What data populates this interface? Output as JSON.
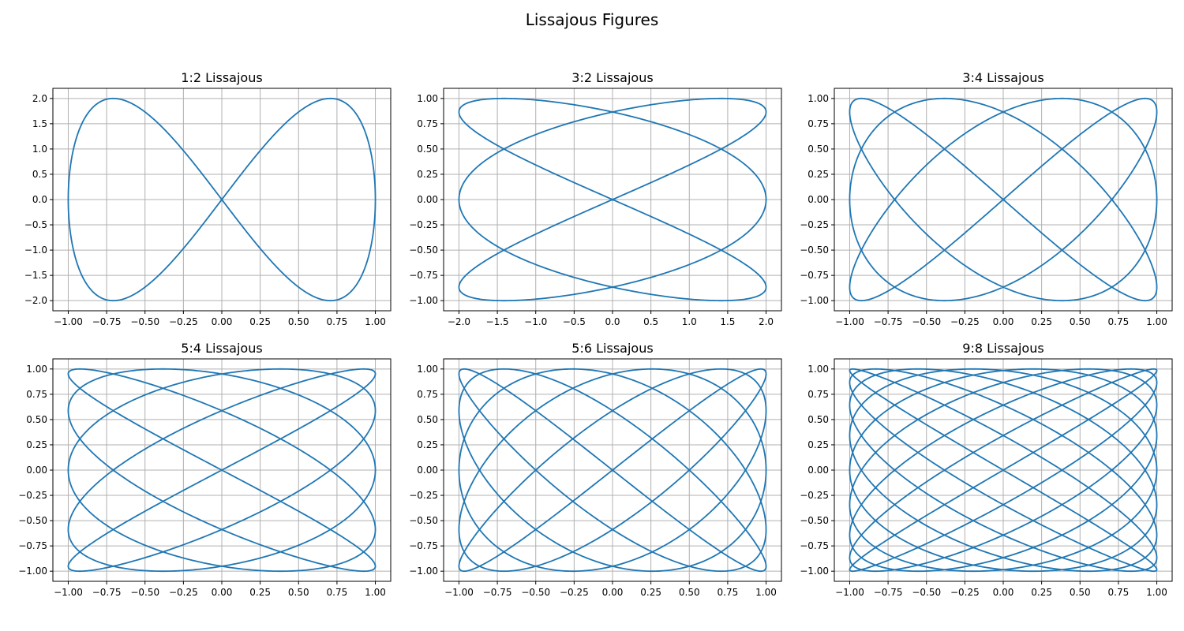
{
  "figure": {
    "title": "Lissajous Figures"
  },
  "chart_data": [
    {
      "type": "line",
      "title": "1:2 Lissajous",
      "equation": {
        "a": 1,
        "b": 2,
        "x_amp": 1,
        "y_amp": 2,
        "x_phase": "pi/2",
        "y_phase": "0"
      },
      "xlim": [
        -1.1,
        1.1
      ],
      "ylim": [
        -2.2,
        2.2
      ],
      "xticks": [
        -1.0,
        -0.75,
        -0.5,
        -0.25,
        0.0,
        0.25,
        0.5,
        0.75,
        1.0
      ],
      "xtick_labels": [
        "−1.00",
        "−0.75",
        "−0.50",
        "−0.25",
        "0.00",
        "0.25",
        "0.50",
        "0.75",
        "1.00"
      ],
      "yticks": [
        -2.0,
        -1.5,
        -1.0,
        -0.5,
        0.0,
        0.5,
        1.0,
        1.5,
        2.0
      ],
      "ytick_labels": [
        "−2.0",
        "−1.5",
        "−1.0",
        "−0.5",
        "0.0",
        "0.5",
        "1.0",
        "1.5",
        "2.0"
      ],
      "grid": true,
      "color": "#1f77b4"
    },
    {
      "type": "line",
      "title": "3:2 Lissajous",
      "equation": {
        "a": 3,
        "b": 2,
        "x_amp": 2,
        "y_amp": 1,
        "x_phase": "pi/2",
        "y_phase": "0"
      },
      "xlim": [
        -2.2,
        2.2
      ],
      "ylim": [
        -1.1,
        1.1
      ],
      "xticks": [
        -2.0,
        -1.5,
        -1.0,
        -0.5,
        0.0,
        0.5,
        1.0,
        1.5,
        2.0
      ],
      "xtick_labels": [
        "−2.0",
        "−1.5",
        "−1.0",
        "−0.5",
        "0.0",
        "0.5",
        "1.0",
        "1.5",
        "2.0"
      ],
      "yticks": [
        -1.0,
        -0.75,
        -0.5,
        -0.25,
        0.0,
        0.25,
        0.5,
        0.75,
        1.0
      ],
      "ytick_labels": [
        "−1.00",
        "−0.75",
        "−0.50",
        "−0.25",
        "0.00",
        "0.25",
        "0.50",
        "0.75",
        "1.00"
      ],
      "grid": true,
      "color": "#1f77b4"
    },
    {
      "type": "line",
      "title": "3:4 Lissajous",
      "equation": {
        "a": 3,
        "b": 4,
        "x_amp": 1,
        "y_amp": 1,
        "x_phase": "pi/2",
        "y_phase": "0"
      },
      "xlim": [
        -1.1,
        1.1
      ],
      "ylim": [
        -1.1,
        1.1
      ],
      "xticks": [
        -1.0,
        -0.75,
        -0.5,
        -0.25,
        0.0,
        0.25,
        0.5,
        0.75,
        1.0
      ],
      "xtick_labels": [
        "−1.00",
        "−0.75",
        "−0.50",
        "−0.25",
        "0.00",
        "0.25",
        "0.50",
        "0.75",
        "1.00"
      ],
      "yticks": [
        -1.0,
        -0.75,
        -0.5,
        -0.25,
        0.0,
        0.25,
        0.5,
        0.75,
        1.0
      ],
      "ytick_labels": [
        "−1.00",
        "−0.75",
        "−0.50",
        "−0.25",
        "0.00",
        "0.25",
        "0.50",
        "0.75",
        "1.00"
      ],
      "grid": true,
      "color": "#1f77b4"
    },
    {
      "type": "line",
      "title": "5:4 Lissajous",
      "equation": {
        "a": 5,
        "b": 4,
        "x_amp": 1,
        "y_amp": 1,
        "x_phase": "pi/2",
        "y_phase": "0"
      },
      "xlim": [
        -1.1,
        1.1
      ],
      "ylim": [
        -1.1,
        1.1
      ],
      "xticks": [
        -1.0,
        -0.75,
        -0.5,
        -0.25,
        0.0,
        0.25,
        0.5,
        0.75,
        1.0
      ],
      "xtick_labels": [
        "−1.00",
        "−0.75",
        "−0.50",
        "−0.25",
        "0.00",
        "0.25",
        "0.50",
        "0.75",
        "1.00"
      ],
      "yticks": [
        -1.0,
        -0.75,
        -0.5,
        -0.25,
        0.0,
        0.25,
        0.5,
        0.75,
        1.0
      ],
      "ytick_labels": [
        "−1.00",
        "−0.75",
        "−0.50",
        "−0.25",
        "0.00",
        "0.25",
        "0.50",
        "0.75",
        "1.00"
      ],
      "grid": true,
      "color": "#1f77b4"
    },
    {
      "type": "line",
      "title": "5:6 Lissajous",
      "equation": {
        "a": 5,
        "b": 6,
        "x_amp": 1,
        "y_amp": 1,
        "x_phase": "pi/2",
        "y_phase": "0"
      },
      "xlim": [
        -1.1,
        1.1
      ],
      "ylim": [
        -1.1,
        1.1
      ],
      "xticks": [
        -1.0,
        -0.75,
        -0.5,
        -0.25,
        0.0,
        0.25,
        0.5,
        0.75,
        1.0
      ],
      "xtick_labels": [
        "−1.00",
        "−0.75",
        "−0.50",
        "−0.25",
        "0.00",
        "0.25",
        "0.50",
        "0.75",
        "1.00"
      ],
      "yticks": [
        -1.0,
        -0.75,
        -0.5,
        -0.25,
        0.0,
        0.25,
        0.5,
        0.75,
        1.0
      ],
      "ytick_labels": [
        "−1.00",
        "−0.75",
        "−0.50",
        "−0.25",
        "0.00",
        "0.25",
        "0.50",
        "0.75",
        "1.00"
      ],
      "grid": true,
      "color": "#1f77b4"
    },
    {
      "type": "line",
      "title": "9:8 Lissajous",
      "equation": {
        "a": 9,
        "b": 8,
        "x_amp": 1,
        "y_amp": 1,
        "x_phase": "pi/2",
        "y_phase": "0"
      },
      "xlim": [
        -1.1,
        1.1
      ],
      "ylim": [
        -1.1,
        1.1
      ],
      "xticks": [
        -1.0,
        -0.75,
        -0.5,
        -0.25,
        0.0,
        0.25,
        0.5,
        0.75,
        1.0
      ],
      "xtick_labels": [
        "−1.00",
        "−0.75",
        "−0.50",
        "−0.25",
        "0.00",
        "0.25",
        "0.50",
        "0.75",
        "1.00"
      ],
      "yticks": [
        -1.0,
        -0.75,
        -0.5,
        -0.25,
        0.0,
        0.25,
        0.5,
        0.75,
        1.0
      ],
      "ytick_labels": [
        "−1.00",
        "−0.75",
        "−0.50",
        "−0.25",
        "0.00",
        "0.25",
        "0.50",
        "0.75",
        "1.00"
      ],
      "grid": true,
      "color": "#1f77b4"
    }
  ]
}
